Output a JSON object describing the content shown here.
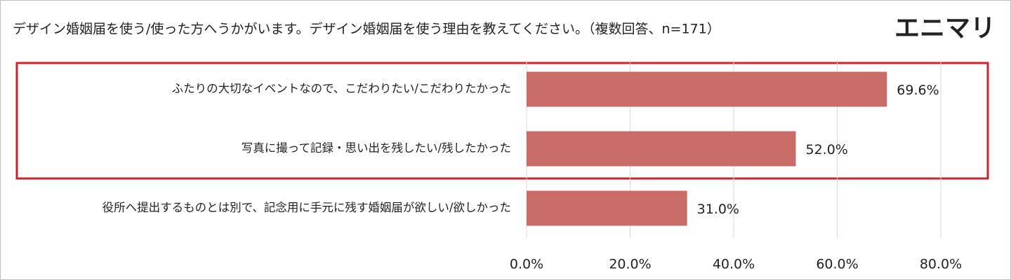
{
  "chart_data": {
    "type": "hbar",
    "title": "デザイン婚姻届を使う/使った方へうかがいます。デザイン婚姻届を使う理由を教えてください。（複数回答、n=171）",
    "logo": "エニマリ",
    "categories": [
      "ふたりの大切なイベントなので、こだわりたい/こだわりたかった",
      "写真に撮って記録・思い出を残したい/残したかった",
      "役所へ提出するものとは別で、記念用に手元に残す婚姻届が欲しい/欲しかった"
    ],
    "values": [
      69.6,
      52.0,
      31.0
    ],
    "value_labels": [
      "69.6%",
      "52.0%",
      "31.0%"
    ],
    "color": "#c96b66",
    "xlim": [
      0,
      80
    ],
    "xticks": [
      {
        "value": 0,
        "label": "0.0%"
      },
      {
        "value": 20,
        "label": "20.0%"
      },
      {
        "value": 40,
        "label": "40.0%"
      },
      {
        "value": 60,
        "label": "60.0%"
      },
      {
        "value": 80,
        "label": "80.0%"
      }
    ],
    "grid": true
  }
}
